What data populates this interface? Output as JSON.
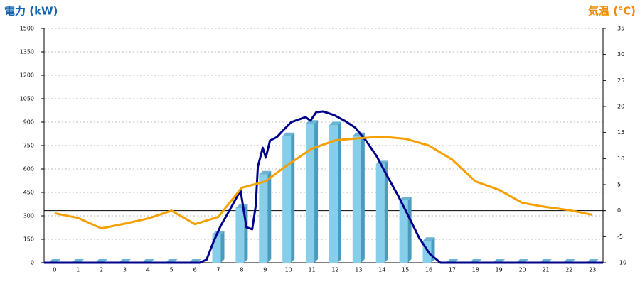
{
  "chart_data": {
    "type": "bar",
    "ylabel": "電力 (kW)",
    "y2label": "気温 (℃)",
    "categories": [
      0,
      1,
      2,
      3,
      4,
      5,
      6,
      7,
      8,
      9,
      10,
      11,
      12,
      13,
      14,
      15,
      16,
      17,
      18,
      19,
      20,
      21,
      22,
      23
    ],
    "xlim": [
      -0.45,
      23.45
    ],
    "ylim": [
      0,
      1500
    ],
    "yticks": [
      0,
      150,
      300,
      450,
      600,
      750,
      900,
      1050,
      1200,
      1350,
      1500
    ],
    "y2lim": [
      -10,
      35
    ],
    "y2ticks": [
      -10,
      -5,
      0,
      5,
      10,
      15,
      20,
      25,
      30,
      35
    ],
    "grid": true,
    "series": [
      {
        "type": "bar",
        "color": "#87ceeb",
        "values": [
          0,
          0,
          0,
          0,
          0,
          0,
          0,
          180,
          350,
          565,
          810,
          890,
          880,
          810,
          630,
          400,
          140,
          0,
          0,
          0,
          0,
          0,
          0,
          0
        ]
      },
      {
        "type": "line",
        "color": "#00008b",
        "x": [
          -0.45,
          6.2,
          6.5,
          6.8,
          7.1,
          7.5,
          7.95,
          8.2,
          8.45,
          8.6,
          8.69,
          8.9,
          9.03,
          9.21,
          9.51,
          9.82,
          10.12,
          10.73,
          10.94,
          11.19,
          11.49,
          11.95,
          12.4,
          12.86,
          13.31,
          13.77,
          14.22,
          14.68,
          15.14,
          15.59,
          16.05,
          16.5,
          23.45
        ],
        "values": [
          0,
          0,
          20,
          136,
          236,
          341,
          464,
          227,
          214,
          364,
          614,
          736,
          673,
          782,
          805,
          855,
          900,
          932,
          909,
          964,
          968,
          945,
          909,
          864,
          782,
          682,
          555,
          432,
          295,
          159,
          55,
          0,
          0
        ]
      },
      {
        "type": "line",
        "axis": "y2",
        "color": "#f5a000",
        "values": [
          -0.5,
          -1.4,
          -3.4,
          -2.5,
          -1.5,
          0,
          -2.6,
          -1.2,
          4.4,
          5.6,
          8.9,
          11.9,
          13.5,
          13.9,
          14.2,
          13.8,
          12.5,
          9.8,
          5.6,
          4.0,
          1.5,
          0.7,
          0.1,
          -0.8
        ]
      }
    ]
  }
}
